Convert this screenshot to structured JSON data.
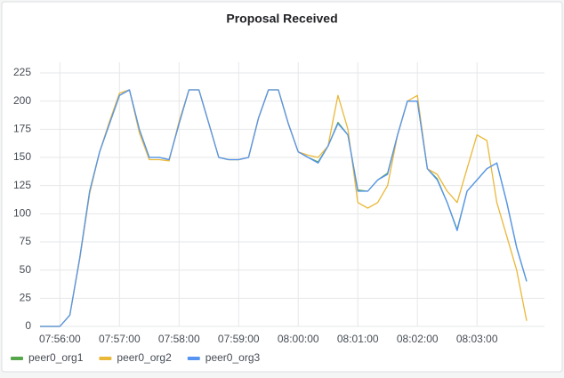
{
  "chart_data": {
    "type": "line",
    "title": "Proposal Received",
    "x": [
      "07:55:40",
      "07:55:50",
      "07:56:00",
      "07:56:10",
      "07:56:20",
      "07:56:30",
      "07:56:40",
      "07:56:50",
      "07:57:00",
      "07:57:10",
      "07:57:20",
      "07:57:30",
      "07:57:40",
      "07:57:50",
      "07:58:00",
      "07:58:10",
      "07:58:20",
      "07:58:30",
      "07:58:40",
      "07:58:50",
      "07:59:00",
      "07:59:10",
      "07:59:20",
      "07:59:30",
      "07:59:40",
      "07:59:50",
      "08:00:00",
      "08:00:10",
      "08:00:20",
      "08:00:30",
      "08:00:40",
      "08:00:50",
      "08:01:00",
      "08:01:10",
      "08:01:20",
      "08:01:30",
      "08:01:40",
      "08:01:50",
      "08:02:00",
      "08:02:10",
      "08:02:20",
      "08:02:30",
      "08:02:40",
      "08:02:50",
      "08:03:00",
      "08:03:10",
      "08:03:20",
      "08:03:30",
      "08:03:40",
      "08:03:50"
    ],
    "series": [
      {
        "name": "peer0_org1",
        "color": "#56a64b",
        "values": [
          0,
          0,
          0,
          10,
          61,
          120,
          155,
          180,
          205,
          210,
          175,
          150,
          150,
          148,
          180,
          210,
          210,
          180,
          150,
          148,
          148,
          150,
          185,
          210,
          210,
          180,
          155,
          150,
          146,
          160,
          181,
          170,
          121,
          120,
          130,
          136,
          170,
          200,
          200,
          140,
          131,
          110,
          86,
          120,
          130,
          140,
          145,
          110,
          70,
          40
        ]
      },
      {
        "name": "peer0_org2",
        "color": "#eab839",
        "values": [
          0,
          0,
          0,
          10,
          60,
          118,
          155,
          182,
          207,
          210,
          172,
          148,
          148,
          147,
          182,
          210,
          210,
          180,
          150,
          148,
          148,
          150,
          185,
          210,
          210,
          180,
          155,
          152,
          150,
          160,
          205,
          175,
          110,
          105,
          110,
          125,
          170,
          200,
          205,
          140,
          135,
          120,
          110,
          140,
          170,
          165,
          110,
          80,
          50,
          5
        ]
      },
      {
        "name": "peer0_org3",
        "color": "#5794f2",
        "values": [
          0,
          0,
          0,
          10,
          61,
          120,
          155,
          180,
          205,
          210,
          175,
          150,
          150,
          148,
          180,
          210,
          210,
          180,
          150,
          148,
          148,
          150,
          185,
          210,
          210,
          180,
          155,
          150,
          145,
          160,
          180,
          170,
          120,
          120,
          130,
          135,
          170,
          200,
          200,
          140,
          130,
          110,
          85,
          120,
          130,
          140,
          145,
          110,
          70,
          40
        ]
      }
    ],
    "xlim": [
      "07:55:40",
      "08:03:50"
    ],
    "xticks": [
      "07:56:00",
      "07:57:00",
      "07:58:00",
      "07:59:00",
      "08:00:00",
      "08:01:00",
      "08:02:00",
      "08:03:00"
    ],
    "ylim": [
      0,
      225
    ],
    "yticks": [
      0,
      25,
      50,
      75,
      100,
      125,
      150,
      175,
      200,
      225
    ],
    "grid": true,
    "legend": "bottom-left"
  }
}
